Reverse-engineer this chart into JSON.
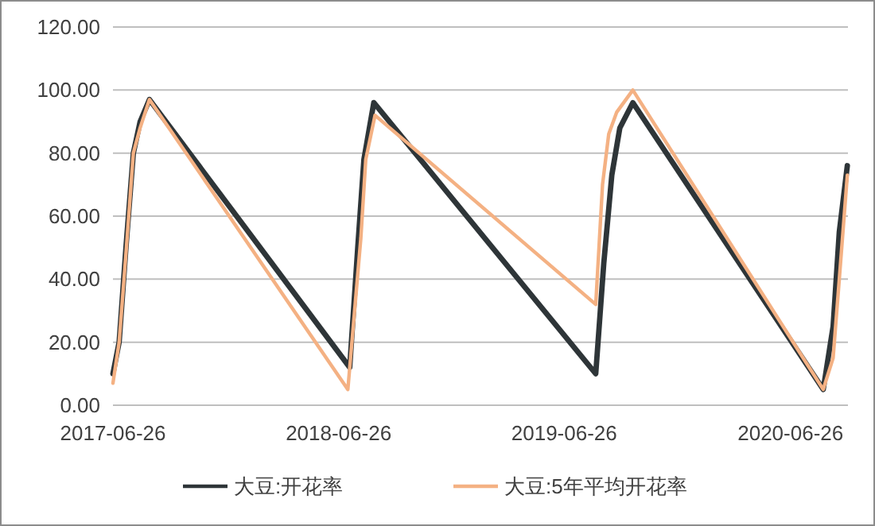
{
  "chart_data": {
    "type": "line",
    "xlim": [
      "2017-06-26",
      "2020-09-27"
    ],
    "xticks": [
      "2017-06-26",
      "2018-06-26",
      "2019-06-26",
      "2020-06-26"
    ],
    "ylim": [
      0,
      120
    ],
    "yticks": [
      {
        "value": 0,
        "label": "0.00"
      },
      {
        "value": 20,
        "label": "20.00"
      },
      {
        "value": 40,
        "label": "40.00"
      },
      {
        "value": 60,
        "label": "60.00"
      },
      {
        "value": 80,
        "label": "80.00"
      },
      {
        "value": 100,
        "label": "100.00"
      },
      {
        "value": 120,
        "label": "120.00"
      }
    ],
    "grid": "y",
    "legend": "bottom",
    "marker": "none",
    "line_style": "solid",
    "series": [
      {
        "name": "大豆:开花率",
        "color": "#2e3538",
        "x": [
          "2017-06-26",
          "2017-07-06",
          "2017-07-17",
          "2017-07-29",
          "2017-08-09",
          "2017-08-24",
          "2018-07-14",
          "2018-07-27",
          "2018-08-06",
          "2018-08-22",
          "2019-08-16",
          "2019-08-29",
          "2019-09-11",
          "2019-09-24",
          "2019-10-15",
          "2020-08-18",
          "2020-09-03",
          "2020-09-13",
          "2020-09-26"
        ],
        "values": [
          10,
          20,
          50,
          80,
          90,
          97,
          12,
          50,
          78,
          96,
          10,
          45,
          73,
          88,
          96,
          5,
          25,
          55,
          76
        ]
      },
      {
        "name": "大豆:5年平均开花率",
        "color": "#f4b183",
        "x": [
          "2017-06-26",
          "2017-07-06",
          "2017-07-17",
          "2017-07-29",
          "2017-08-09",
          "2017-08-24",
          "2018-07-11",
          "2018-08-01",
          "2018-08-09",
          "2018-08-24",
          "2019-08-16",
          "2019-08-27",
          "2019-09-06",
          "2019-09-19",
          "2019-10-15",
          "2020-08-18",
          "2020-09-03",
          "2020-09-13",
          "2020-09-26"
        ],
        "values": [
          7,
          20,
          48,
          80,
          88,
          97,
          5,
          53,
          78,
          92,
          32,
          70,
          86,
          93,
          100,
          5,
          15,
          40,
          73
        ]
      }
    ]
  }
}
